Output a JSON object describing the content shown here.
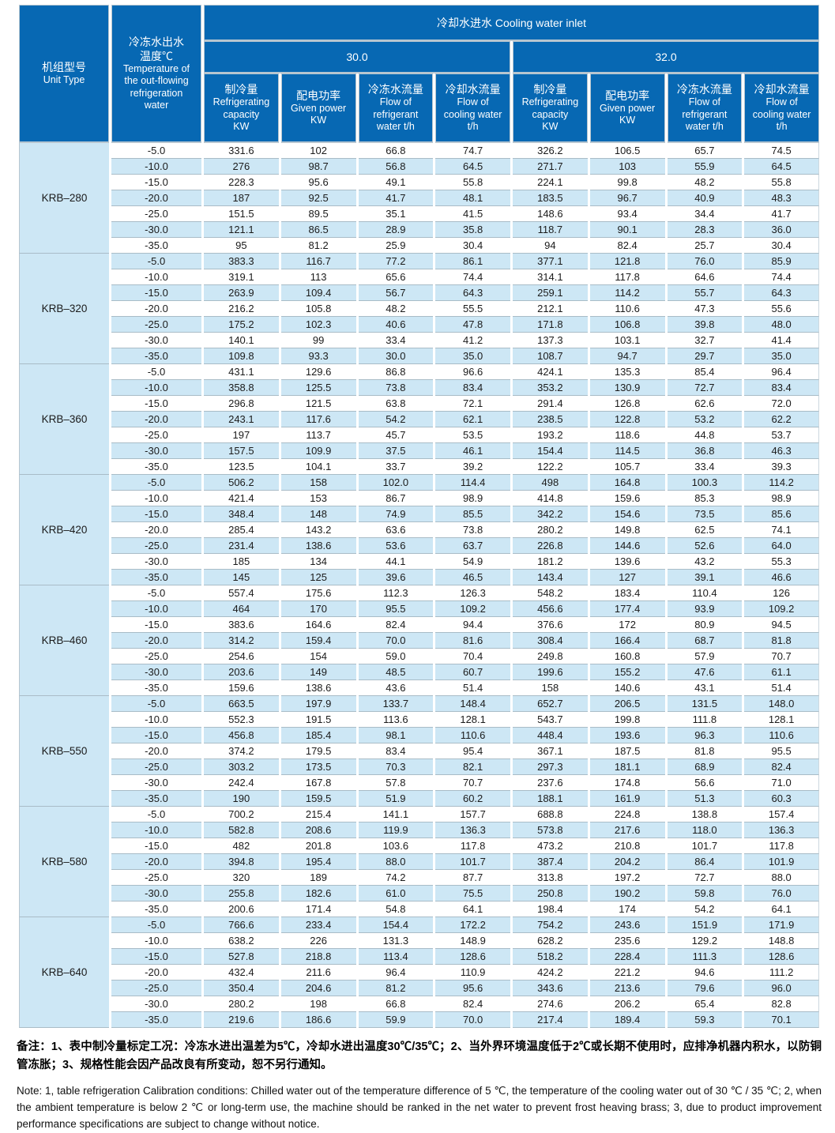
{
  "colors": {
    "header_bg": "#0768b3",
    "stripe_bg": "#cde7f5",
    "grid_line": "#a9bcc7",
    "header_divider": "#b7c6d0"
  },
  "table": {
    "header": {
      "unit_type_zh": "机组型号",
      "unit_type_en": "Unit Type",
      "temperature_zh": "冷冻水出水\n温度℃",
      "temperature_en": "Temperature of\nthe out-flowing\nrefrigeration\nwater",
      "cooling_water_inlet": "冷却水进水 Cooling water inlet",
      "inlet_temps": [
        "30.0",
        "32.0"
      ],
      "metrics": [
        {
          "zh": "制冷量",
          "en": "Refrigerating\ncapacity\nKW"
        },
        {
          "zh": "配电功率",
          "en": "Given power\nKW"
        },
        {
          "zh": "冷冻水流量",
          "en": "Flow of\nrefrigerant\nwater t/h"
        },
        {
          "zh": "冷却水流量",
          "en": "Flow of\ncooling water\nt/h"
        }
      ]
    },
    "groups": [
      {
        "unit": "KRB–280",
        "rows": [
          {
            "temp": "-5.0",
            "values": [
              "331.6",
              "102",
              "66.8",
              "74.7",
              "326.2",
              "106.5",
              "65.7",
              "74.5"
            ]
          },
          {
            "temp": "-10.0",
            "values": [
              "276",
              "98.7",
              "56.8",
              "64.5",
              "271.7",
              "103",
              "55.9",
              "64.5"
            ]
          },
          {
            "temp": "-15.0",
            "values": [
              "228.3",
              "95.6",
              "49.1",
              "55.8",
              "224.1",
              "99.8",
              "48.2",
              "55.8"
            ]
          },
          {
            "temp": "-20.0",
            "values": [
              "187",
              "92.5",
              "41.7",
              "48.1",
              "183.5",
              "96.7",
              "40.9",
              "48.3"
            ]
          },
          {
            "temp": "-25.0",
            "values": [
              "151.5",
              "89.5",
              "35.1",
              "41.5",
              "148.6",
              "93.4",
              "34.4",
              "41.7"
            ]
          },
          {
            "temp": "-30.0",
            "values": [
              "121.1",
              "86.5",
              "28.9",
              "35.8",
              "118.7",
              "90.1",
              "28.3",
              "36.0"
            ]
          },
          {
            "temp": "-35.0",
            "values": [
              "95",
              "81.2",
              "25.9",
              "30.4",
              "94",
              "82.4",
              "25.7",
              "30.4"
            ]
          }
        ]
      },
      {
        "unit": "KRB–320",
        "rows": [
          {
            "temp": "-5.0",
            "values": [
              "383.3",
              "116.7",
              "77.2",
              "86.1",
              "377.1",
              "121.8",
              "76.0",
              "85.9"
            ]
          },
          {
            "temp": "-10.0",
            "values": [
              "319.1",
              "113",
              "65.6",
              "74.4",
              "314.1",
              "117.8",
              "64.6",
              "74.4"
            ]
          },
          {
            "temp": "-15.0",
            "values": [
              "263.9",
              "109.4",
              "56.7",
              "64.3",
              "259.1",
              "114.2",
              "55.7",
              "64.3"
            ]
          },
          {
            "temp": "-20.0",
            "values": [
              "216.2",
              "105.8",
              "48.2",
              "55.5",
              "212.1",
              "110.6",
              "47.3",
              "55.6"
            ]
          },
          {
            "temp": "-25.0",
            "values": [
              "175.2",
              "102.3",
              "40.6",
              "47.8",
              "171.8",
              "106.8",
              "39.8",
              "48.0"
            ]
          },
          {
            "temp": "-30.0",
            "values": [
              "140.1",
              "99",
              "33.4",
              "41.2",
              "137.3",
              "103.1",
              "32.7",
              "41.4"
            ]
          },
          {
            "temp": "-35.0",
            "values": [
              "109.8",
              "93.3",
              "30.0",
              "35.0",
              "108.7",
              "94.7",
              "29.7",
              "35.0"
            ]
          }
        ]
      },
      {
        "unit": "KRB–360",
        "rows": [
          {
            "temp": "-5.0",
            "values": [
              "431.1",
              "129.6",
              "86.8",
              "96.6",
              "424.1",
              "135.3",
              "85.4",
              "96.4"
            ]
          },
          {
            "temp": "-10.0",
            "values": [
              "358.8",
              "125.5",
              "73.8",
              "83.4",
              "353.2",
              "130.9",
              "72.7",
              "83.4"
            ]
          },
          {
            "temp": "-15.0",
            "values": [
              "296.8",
              "121.5",
              "63.8",
              "72.1",
              "291.4",
              "126.8",
              "62.6",
              "72.0"
            ]
          },
          {
            "temp": "-20.0",
            "values": [
              "243.1",
              "117.6",
              "54.2",
              "62.1",
              "238.5",
              "122.8",
              "53.2",
              "62.2"
            ]
          },
          {
            "temp": "-25.0",
            "values": [
              "197",
              "113.7",
              "45.7",
              "53.5",
              "193.2",
              "118.6",
              "44.8",
              "53.7"
            ]
          },
          {
            "temp": "-30.0",
            "values": [
              "157.5",
              "109.9",
              "37.5",
              "46.1",
              "154.4",
              "114.5",
              "36.8",
              "46.3"
            ]
          },
          {
            "temp": "-35.0",
            "values": [
              "123.5",
              "104.1",
              "33.7",
              "39.2",
              "122.2",
              "105.7",
              "33.4",
              "39.3"
            ]
          }
        ]
      },
      {
        "unit": "KRB–420",
        "rows": [
          {
            "temp": "-5.0",
            "values": [
              "506.2",
              "158",
              "102.0",
              "114.4",
              "498",
              "164.8",
              "100.3",
              "114.2"
            ]
          },
          {
            "temp": "-10.0",
            "values": [
              "421.4",
              "153",
              "86.7",
              "98.9",
              "414.8",
              "159.6",
              "85.3",
              "98.9"
            ]
          },
          {
            "temp": "-15.0",
            "values": [
              "348.4",
              "148",
              "74.9",
              "85.5",
              "342.2",
              "154.6",
              "73.5",
              "85.6"
            ]
          },
          {
            "temp": "-20.0",
            "values": [
              "285.4",
              "143.2",
              "63.6",
              "73.8",
              "280.2",
              "149.8",
              "62.5",
              "74.1"
            ]
          },
          {
            "temp": "-25.0",
            "values": [
              "231.4",
              "138.6",
              "53.6",
              "63.7",
              "226.8",
              "144.6",
              "52.6",
              "64.0"
            ]
          },
          {
            "temp": "-30.0",
            "values": [
              "185",
              "134",
              "44.1",
              "54.9",
              "181.2",
              "139.6",
              "43.2",
              "55.3"
            ]
          },
          {
            "temp": "-35.0",
            "values": [
              "145",
              "125",
              "39.6",
              "46.5",
              "143.4",
              "127",
              "39.1",
              "46.6"
            ]
          }
        ]
      },
      {
        "unit": "KRB–460",
        "rows": [
          {
            "temp": "-5.0",
            "values": [
              "557.4",
              "175.6",
              "112.3",
              "126.3",
              "548.2",
              "183.4",
              "110.4",
              "126"
            ]
          },
          {
            "temp": "-10.0",
            "values": [
              "464",
              "170",
              "95.5",
              "109.2",
              "456.6",
              "177.4",
              "93.9",
              "109.2"
            ]
          },
          {
            "temp": "-15.0",
            "values": [
              "383.6",
              "164.6",
              "82.4",
              "94.4",
              "376.6",
              "172",
              "80.9",
              "94.5"
            ]
          },
          {
            "temp": "-20.0",
            "values": [
              "314.2",
              "159.4",
              "70.0",
              "81.6",
              "308.4",
              "166.4",
              "68.7",
              "81.8"
            ]
          },
          {
            "temp": "-25.0",
            "values": [
              "254.6",
              "154",
              "59.0",
              "70.4",
              "249.8",
              "160.8",
              "57.9",
              "70.7"
            ]
          },
          {
            "temp": "-30.0",
            "values": [
              "203.6",
              "149",
              "48.5",
              "60.7",
              "199.6",
              "155.2",
              "47.6",
              "61.1"
            ]
          },
          {
            "temp": "-35.0",
            "values": [
              "159.6",
              "138.6",
              "43.6",
              "51.4",
              "158",
              "140.6",
              "43.1",
              "51.4"
            ]
          }
        ]
      },
      {
        "unit": "KRB–550",
        "rows": [
          {
            "temp": "-5.0",
            "values": [
              "663.5",
              "197.9",
              "133.7",
              "148.4",
              "652.7",
              "206.5",
              "131.5",
              "148.0"
            ]
          },
          {
            "temp": "-10.0",
            "values": [
              "552.3",
              "191.5",
              "113.6",
              "128.1",
              "543.7",
              "199.8",
              "111.8",
              "128.1"
            ]
          },
          {
            "temp": "-15.0",
            "values": [
              "456.8",
              "185.4",
              "98.1",
              "110.6",
              "448.4",
              "193.6",
              "96.3",
              "110.6"
            ]
          },
          {
            "temp": "-20.0",
            "values": [
              "374.2",
              "179.5",
              "83.4",
              "95.4",
              "367.1",
              "187.5",
              "81.8",
              "95.5"
            ]
          },
          {
            "temp": "-25.0",
            "values": [
              "303.2",
              "173.5",
              "70.3",
              "82.1",
              "297.3",
              "181.1",
              "68.9",
              "82.4"
            ]
          },
          {
            "temp": "-30.0",
            "values": [
              "242.4",
              "167.8",
              "57.8",
              "70.7",
              "237.6",
              "174.8",
              "56.6",
              "71.0"
            ]
          },
          {
            "temp": "-35.0",
            "values": [
              "190",
              "159.5",
              "51.9",
              "60.2",
              "188.1",
              "161.9",
              "51.3",
              "60.3"
            ]
          }
        ]
      },
      {
        "unit": "KRB–580",
        "rows": [
          {
            "temp": "-5.0",
            "values": [
              "700.2",
              "215.4",
              "141.1",
              "157.7",
              "688.8",
              "224.8",
              "138.8",
              "157.4"
            ]
          },
          {
            "temp": "-10.0",
            "values": [
              "582.8",
              "208.6",
              "119.9",
              "136.3",
              "573.8",
              "217.6",
              "118.0",
              "136.3"
            ]
          },
          {
            "temp": "-15.0",
            "values": [
              "482",
              "201.8",
              "103.6",
              "117.8",
              "473.2",
              "210.8",
              "101.7",
              "117.8"
            ]
          },
          {
            "temp": "-20.0",
            "values": [
              "394.8",
              "195.4",
              "88.0",
              "101.7",
              "387.4",
              "204.2",
              "86.4",
              "101.9"
            ]
          },
          {
            "temp": "-25.0",
            "values": [
              "320",
              "189",
              "74.2",
              "87.7",
              "313.8",
              "197.2",
              "72.7",
              "88.0"
            ]
          },
          {
            "temp": "-30.0",
            "values": [
              "255.8",
              "182.6",
              "61.0",
              "75.5",
              "250.8",
              "190.2",
              "59.8",
              "76.0"
            ]
          },
          {
            "temp": "-35.0",
            "values": [
              "200.6",
              "171.4",
              "54.8",
              "64.1",
              "198.4",
              "174",
              "54.2",
              "64.1"
            ]
          }
        ]
      },
      {
        "unit": "KRB–640",
        "rows": [
          {
            "temp": "-5.0",
            "values": [
              "766.6",
              "233.4",
              "154.4",
              "172.2",
              "754.2",
              "243.6",
              "151.9",
              "171.9"
            ]
          },
          {
            "temp": "-10.0",
            "values": [
              "638.2",
              "226",
              "131.3",
              "148.9",
              "628.2",
              "235.6",
              "129.2",
              "148.8"
            ]
          },
          {
            "temp": "-15.0",
            "values": [
              "527.8",
              "218.8",
              "113.4",
              "128.6",
              "518.2",
              "228.4",
              "111.3",
              "128.6"
            ]
          },
          {
            "temp": "-20.0",
            "values": [
              "432.4",
              "211.6",
              "96.4",
              "110.9",
              "424.2",
              "221.2",
              "94.6",
              "111.2"
            ]
          },
          {
            "temp": "-25.0",
            "values": [
              "350.4",
              "204.6",
              "81.2",
              "95.6",
              "343.6",
              "213.6",
              "79.6",
              "96.0"
            ]
          },
          {
            "temp": "-30.0",
            "values": [
              "280.2",
              "198",
              "66.8",
              "82.4",
              "274.6",
              "206.2",
              "65.4",
              "82.8"
            ]
          },
          {
            "temp": "-35.0",
            "values": [
              "219.6",
              "186.6",
              "59.9",
              "70.0",
              "217.4",
              "189.4",
              "59.3",
              "70.1"
            ]
          }
        ]
      }
    ]
  },
  "notes": {
    "zh": "备注：1、表中制冷量标定工况：冷冻水进出温差为5℃，冷却水进出温度30℃/35℃；2、当外界环境温度低于2℃或长期不使用时，应排净机器内积水，以防铜管冻胀；3、规格性能会因产品改良有所变动，恕不另行通知。",
    "en": "Note: 1, table refrigeration Calibration conditions: Chilled water out of the temperature difference of 5 ℃, the temperature of the cooling water out of 30 ℃ / 35 ℃; 2, when the  ambient temperature is below 2 ℃ or long-term use, the machine should be ranked in the net water to prevent frost heaving brass; 3, due to product improvement performance specifications are subject to change without notice."
  }
}
